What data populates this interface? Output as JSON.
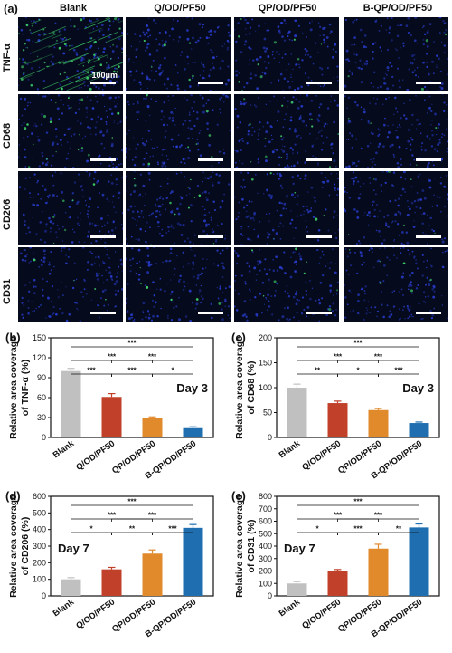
{
  "figure": {
    "micrograph_panel_letter": "(a)",
    "columns": [
      "Blank",
      "Q/OD/PF50",
      "QP/OD/PF50",
      "B-QP/OD/PF50"
    ],
    "rows": [
      "TNF-α",
      "CD68",
      "CD206",
      "CD31"
    ],
    "scale_bar_label": "100μm",
    "colors": {
      "tissue_bg": "#050a1c",
      "nuclei": "#2a3fd6",
      "marker": "#3fcf6a"
    }
  },
  "chart_data": [
    {
      "type": "bar",
      "panel": "(b)",
      "categories": [
        "Blank",
        "Q/OD/PF50",
        "QP/OD/PF50",
        "B-QP/OD/PF50"
      ],
      "values": [
        100,
        61,
        29,
        14
      ],
      "errors": [
        4,
        5,
        2,
        2
      ],
      "colors": [
        "#c0c0c0",
        "#c0402a",
        "#e08a2c",
        "#1f6fb0"
      ],
      "ylabel": "Relative area coverage of TNF-α (%)",
      "ylim": [
        0,
        150
      ],
      "yticks": [
        0,
        30,
        60,
        90,
        120,
        150
      ],
      "annotation": "Day 3",
      "significance": [
        {
          "from": 0,
          "to": 1,
          "label": "***"
        },
        {
          "from": 1,
          "to": 2,
          "label": "***"
        },
        {
          "from": 2,
          "to": 3,
          "label": "*"
        },
        {
          "from": 0,
          "to": 2,
          "label": "***"
        },
        {
          "from": 1,
          "to": 3,
          "label": "***"
        },
        {
          "from": 0,
          "to": 3,
          "label": "***"
        }
      ]
    },
    {
      "type": "bar",
      "panel": "(c)",
      "categories": [
        "Blank",
        "Q/OD/PF50",
        "QP/OD/PF50",
        "B-QP/OD/PF50"
      ],
      "values": [
        100,
        69,
        55,
        29
      ],
      "errors": [
        7,
        4,
        3,
        2
      ],
      "colors": [
        "#c0c0c0",
        "#c0402a",
        "#e08a2c",
        "#1f6fb0"
      ],
      "ylabel": "Relative area coverage of CD68 (%)",
      "ylim": [
        0,
        200
      ],
      "yticks": [
        0,
        50,
        100,
        150,
        200
      ],
      "annotation": "Day 3",
      "significance": [
        {
          "from": 0,
          "to": 1,
          "label": "**"
        },
        {
          "from": 1,
          "to": 2,
          "label": "*"
        },
        {
          "from": 2,
          "to": 3,
          "label": "***"
        },
        {
          "from": 0,
          "to": 2,
          "label": "***"
        },
        {
          "from": 1,
          "to": 3,
          "label": "***"
        },
        {
          "from": 0,
          "to": 3,
          "label": "***"
        }
      ]
    },
    {
      "type": "bar",
      "panel": "(d)",
      "categories": [
        "Blank",
        "Q/OD/PF50",
        "QP/OD/PF50",
        "B-QP/OD/PF50"
      ],
      "values": [
        100,
        160,
        255,
        410
      ],
      "errors": [
        10,
        12,
        22,
        20
      ],
      "colors": [
        "#c0c0c0",
        "#c0402a",
        "#e08a2c",
        "#1f6fb0"
      ],
      "ylabel": "Relative area coverage of CD206 (%)",
      "ylim": [
        0,
        600
      ],
      "yticks": [
        0,
        100,
        200,
        300,
        400,
        500,
        600
      ],
      "annotation": "Day 7",
      "significance": [
        {
          "from": 0,
          "to": 1,
          "label": "*"
        },
        {
          "from": 1,
          "to": 2,
          "label": "**"
        },
        {
          "from": 2,
          "to": 3,
          "label": "***"
        },
        {
          "from": 0,
          "to": 2,
          "label": "***"
        },
        {
          "from": 1,
          "to": 3,
          "label": "***"
        },
        {
          "from": 0,
          "to": 3,
          "label": "***"
        }
      ]
    },
    {
      "type": "bar",
      "panel": "(e)",
      "categories": [
        "Blank",
        "Q/OD/PF50",
        "QP/OD/PF50",
        "B-QP/OD/PF50"
      ],
      "values": [
        100,
        197,
        380,
        550
      ],
      "errors": [
        15,
        15,
        35,
        28
      ],
      "colors": [
        "#c0c0c0",
        "#c0402a",
        "#e08a2c",
        "#1f6fb0"
      ],
      "ylabel": "Relative area coverage of CD31 (%)",
      "ylim": [
        0,
        800
      ],
      "yticks": [
        0,
        100,
        200,
        300,
        400,
        500,
        600,
        700,
        800
      ],
      "annotation": "Day 7",
      "significance": [
        {
          "from": 0,
          "to": 1,
          "label": "*"
        },
        {
          "from": 1,
          "to": 2,
          "label": "***"
        },
        {
          "from": 2,
          "to": 3,
          "label": "**"
        },
        {
          "from": 0,
          "to": 2,
          "label": "***"
        },
        {
          "from": 1,
          "to": 3,
          "label": "***"
        },
        {
          "from": 0,
          "to": 3,
          "label": "***"
        }
      ]
    }
  ]
}
